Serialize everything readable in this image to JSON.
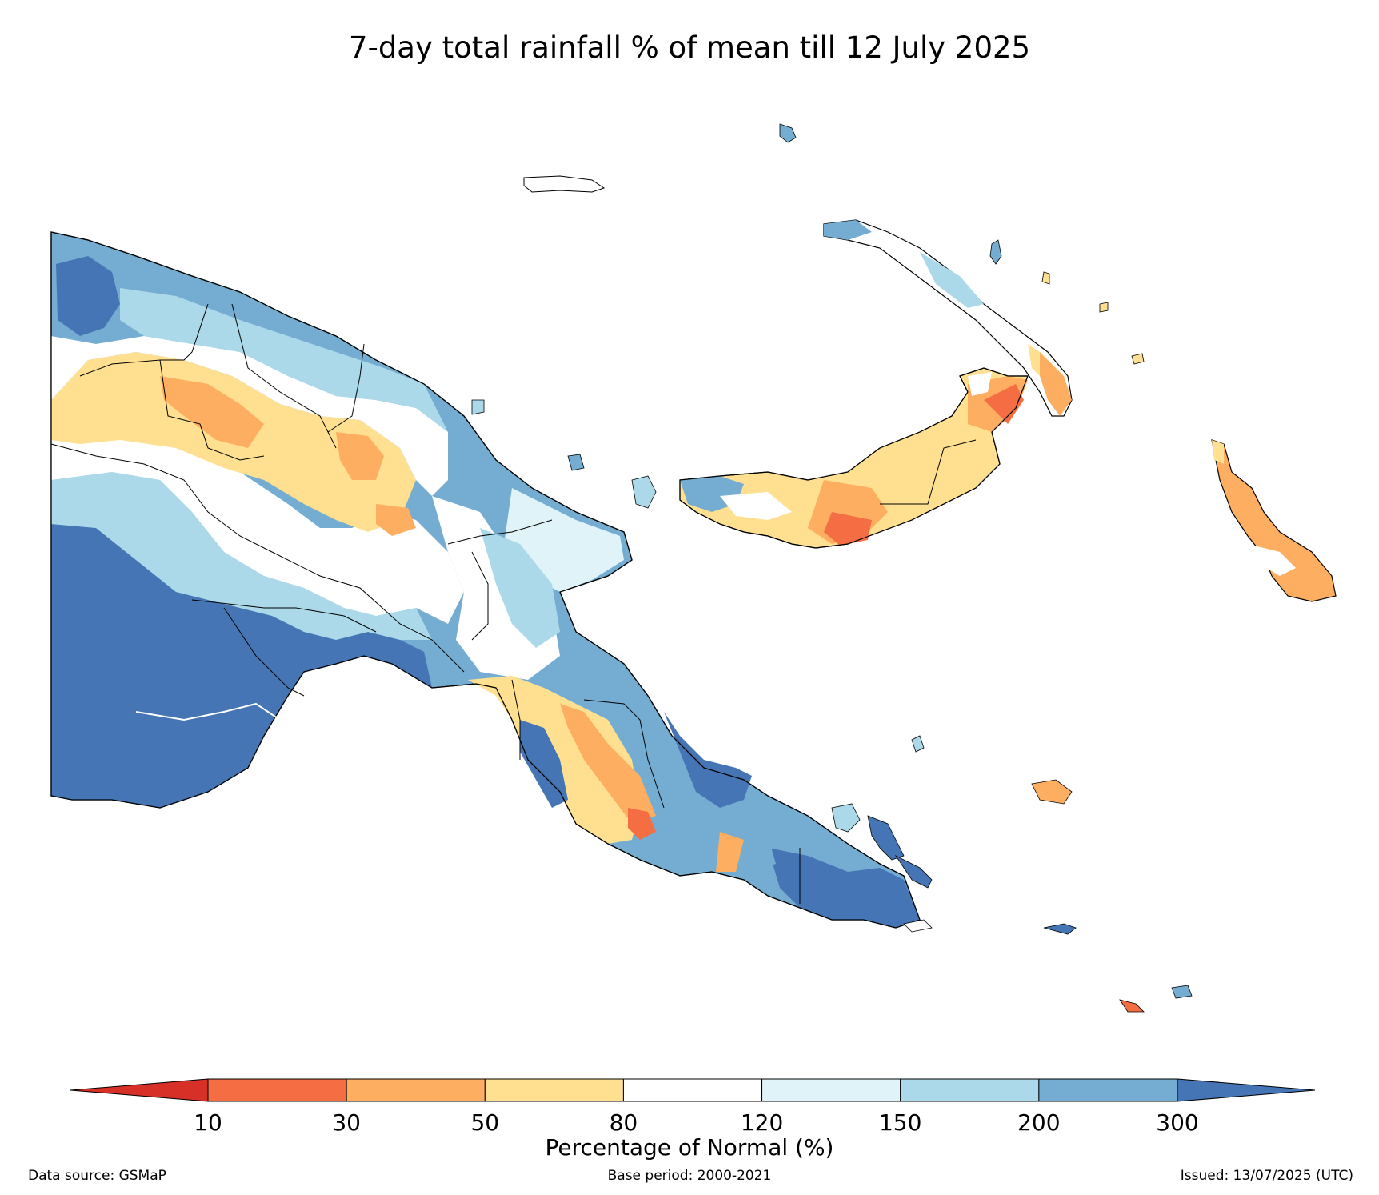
{
  "title": "7-day total rainfall % of mean till 12 July 2025",
  "legend": {
    "label": "Percentage of Normal (%)",
    "ticks": [
      "10",
      "30",
      "50",
      "80",
      "120",
      "150",
      "200",
      "300"
    ],
    "bins": [
      {
        "range": "<10",
        "color": "#d73027"
      },
      {
        "range": "10-30",
        "color": "#f46d43"
      },
      {
        "range": "30-50",
        "color": "#fdae61"
      },
      {
        "range": "50-80",
        "color": "#fee090"
      },
      {
        "range": "80-120",
        "color": "#ffffff"
      },
      {
        "range": "120-150",
        "color": "#e0f3f8"
      },
      {
        "range": "150-200",
        "color": "#abd9e9"
      },
      {
        "range": "200-300",
        "color": "#74add1"
      },
      {
        "range": ">300",
        "color": "#4575b4"
      }
    ]
  },
  "footer": {
    "source": "Data source: GSMaP",
    "base_period": "Base period: 2000-2021",
    "issued": "Issued: 13/07/2025 (UTC)"
  },
  "map": {
    "region": "Papua New Guinea",
    "regions_summary": [
      {
        "area": "Western / Gulf (south-west mainland)",
        "category": ">300"
      },
      {
        "area": "Sandaun / East Sepik (north-west)",
        "category": "200-300"
      },
      {
        "area": "Sepik highlands interior band",
        "category": "50-80"
      },
      {
        "area": "Madang / Morobe north coast",
        "category": "150-200"
      },
      {
        "area": "Central / Owen Stanley spine",
        "category": "30-50"
      },
      {
        "area": "Milne Bay",
        "category": ">300"
      },
      {
        "area": "New Britain (south coast)",
        "category": "10-30"
      },
      {
        "area": "New Ireland",
        "category": "30-50"
      },
      {
        "area": "Bougainville",
        "category": "30-50"
      },
      {
        "area": "Manus",
        "category": "200-300"
      }
    ]
  }
}
